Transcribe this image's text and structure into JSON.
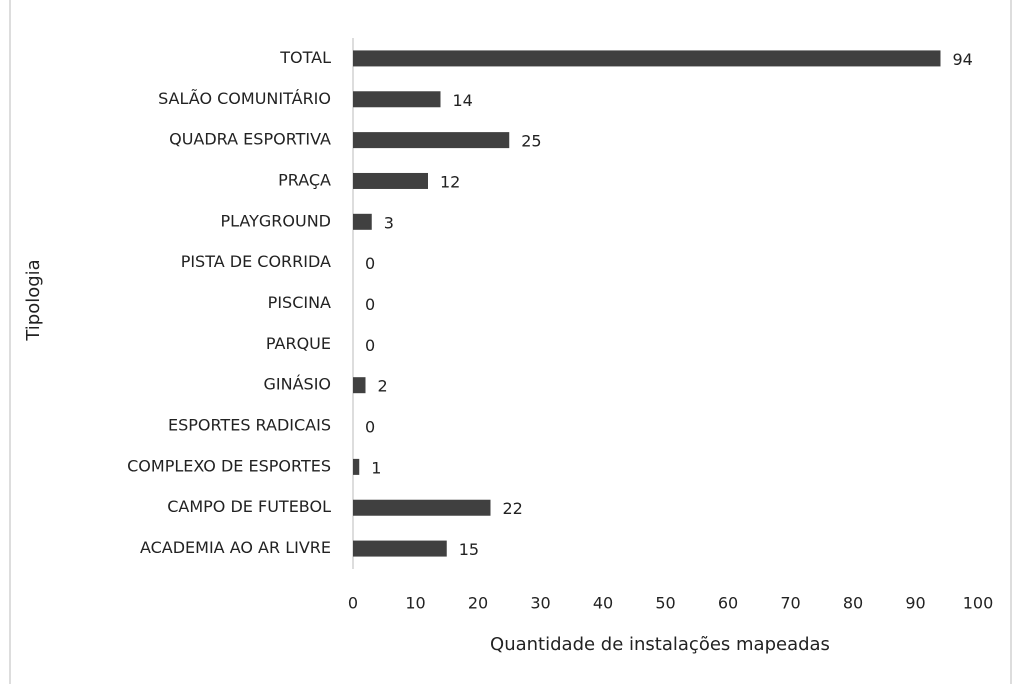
{
  "chart_data": {
    "type": "barh",
    "categories": [
      "TOTAL",
      "SALÃO COMUNITÁRIO",
      "QUADRA ESPORTIVA",
      "PRAÇA",
      "PLAYGROUND",
      "PISTA DE CORRIDA",
      "PISCINA",
      "PARQUE",
      "GINÁSIO",
      "ESPORTES RADICAIS",
      "COMPLEXO DE ESPORTES",
      "CAMPO DE FUTEBOL",
      "ACADEMIA AO AR LIVRE"
    ],
    "values": [
      94,
      14,
      25,
      12,
      3,
      0,
      0,
      0,
      2,
      0,
      1,
      22,
      15
    ],
    "color": "#404040",
    "xlim": [
      0,
      100
    ],
    "xticks": [
      0,
      10,
      20,
      30,
      40,
      50,
      60,
      70,
      80,
      90,
      100
    ],
    "xlabel": "Quantidade de instalações mapeadas",
    "ylabel": "Tipologia",
    "grid": false
  }
}
